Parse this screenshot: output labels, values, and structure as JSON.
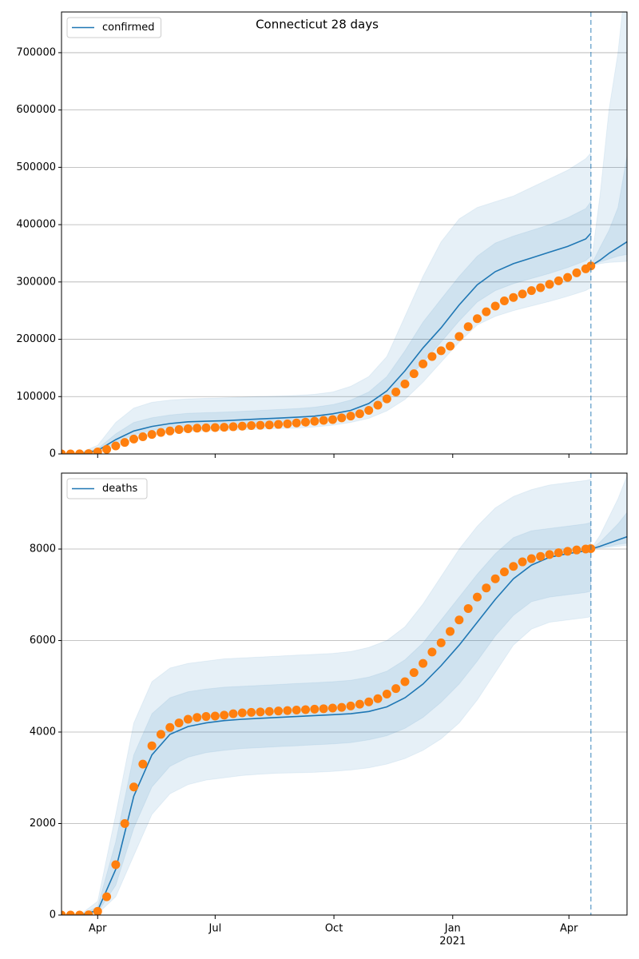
{
  "chart_data": [
    {
      "type": "line",
      "title": "Connecticut 28 days",
      "legend": "upper left",
      "grid": true,
      "xlim": [
        0,
        438
      ],
      "xticks": [
        28,
        119,
        211,
        303,
        393
      ],
      "ylim": [
        0,
        771000
      ],
      "yticks": [
        0,
        100000,
        200000,
        300000,
        400000,
        500000,
        600000,
        700000
      ],
      "vline": 410,
      "series": [
        {
          "name": "confirmed",
          "color": "#1f77b4",
          "x": [
            0,
            14,
            28,
            42,
            56,
            70,
            84,
            98,
            112,
            126,
            140,
            154,
            168,
            182,
            196,
            210,
            224,
            238,
            252,
            266,
            280,
            294,
            308,
            322,
            336,
            350,
            364,
            378,
            392,
            406,
            410
          ],
          "values": [
            0,
            500,
            6000,
            25000,
            40000,
            48000,
            53000,
            56000,
            57000,
            58000,
            59500,
            61000,
            62500,
            64000,
            66000,
            70000,
            76000,
            88000,
            110000,
            145000,
            185000,
            220000,
            260000,
            295000,
            318000,
            332000,
            342000,
            352000,
            362000,
            375000,
            385000
          ],
          "bands": [
            {
              "lower": [
                0,
                0,
                2000,
                12000,
                25000,
                33000,
                37000,
                39000,
                40000,
                41000,
                42000,
                43000,
                44000,
                45000,
                47000,
                50000,
                55000,
                62000,
                75000,
                95000,
                125000,
                160000,
                195000,
                225000,
                240000,
                250000,
                258000,
                266000,
                275000,
                285000,
                290000
              ],
              "upper": [
                0,
                2000,
                15000,
                55000,
                80000,
                90000,
                94000,
                96000,
                97000,
                98000,
                99000,
                100000,
                101000,
                102000,
                104000,
                108000,
                118000,
                135000,
                170000,
                240000,
                310000,
                370000,
                410000,
                430000,
                440000,
                450000,
                465000,
                480000,
                495000,
                515000,
                525000
              ]
            },
            {
              "lower": [
                0,
                300,
                4000,
                19000,
                33000,
                41000,
                46000,
                49000,
                50000,
                51000,
                52000,
                53500,
                55000,
                56500,
                58500,
                62000,
                67000,
                77000,
                95000,
                125000,
                160000,
                195000,
                232000,
                265000,
                285000,
                297000,
                306000,
                315000,
                325000,
                337000,
                345000
              ],
              "upper": [
                0,
                1000,
                9000,
                35000,
                55000,
                63000,
                68000,
                71000,
                72000,
                73000,
                74500,
                76000,
                77500,
                79000,
                81500,
                86000,
                94000,
                108000,
                135000,
                180000,
                230000,
                270000,
                310000,
                345000,
                368000,
                380000,
                390000,
                400000,
                412000,
                428000,
                440000
              ]
            }
          ]
        }
      ],
      "forecast": {
        "color": "#1f77b4",
        "x": [
          410,
          417,
          424,
          431,
          438
        ],
        "values": [
          328000,
          338000,
          350000,
          360000,
          370000
        ],
        "bands": [
          {
            "lower": [
              328000,
              332000,
              334000,
              335000,
              336000
            ],
            "upper": [
              328000,
              450000,
              600000,
              700000,
              850000
            ]
          },
          {
            "lower": [
              328000,
              335000,
              340000,
              345000,
              348000
            ],
            "upper": [
              328000,
              360000,
              390000,
              430000,
              520000
            ]
          }
        ]
      },
      "observed": {
        "color": "#ff7f0e",
        "x": [
          0,
          7,
          14,
          21,
          28,
          35,
          42,
          49,
          56,
          63,
          70,
          77,
          84,
          91,
          98,
          105,
          112,
          119,
          126,
          133,
          140,
          147,
          154,
          161,
          168,
          175,
          182,
          189,
          196,
          203,
          210,
          217,
          224,
          231,
          238,
          245,
          252,
          259,
          266,
          273,
          280,
          287,
          294,
          301,
          308,
          315,
          322,
          329,
          336,
          343,
          350,
          357,
          364,
          371,
          378,
          385,
          392,
          399,
          406,
          410
        ],
        "values": [
          0,
          0,
          100,
          500,
          3500,
          8000,
          14000,
          20000,
          26000,
          30000,
          34000,
          37500,
          40000,
          42500,
          44000,
          45000,
          45500,
          46000,
          46500,
          47500,
          48500,
          49500,
          50000,
          50500,
          51500,
          52500,
          54000,
          55500,
          57000,
          58500,
          60000,
          63000,
          66000,
          70000,
          76000,
          85000,
          96000,
          108000,
          122000,
          140000,
          157000,
          170000,
          180000,
          188000,
          205000,
          222000,
          236000,
          248000,
          258000,
          267000,
          273000,
          279000,
          285000,
          290000,
          296000,
          302000,
          308000,
          316000,
          323000,
          328000
        ]
      }
    },
    {
      "type": "line",
      "legend": "upper left",
      "grid": true,
      "xlim": [
        0,
        438
      ],
      "xticks": [
        {
          "value": 28,
          "label": "Apr"
        },
        {
          "value": 119,
          "label": "Jul"
        },
        {
          "value": 211,
          "label": "Oct"
        },
        {
          "value": 303,
          "label": "Jan",
          "sublabel": "2021"
        },
        {
          "value": 393,
          "label": "Apr"
        }
      ],
      "ylim": [
        0,
        9660
      ],
      "yticks": [
        0,
        2000,
        4000,
        6000,
        8000
      ],
      "vline": 410,
      "series": [
        {
          "name": "deaths",
          "color": "#1f77b4",
          "x": [
            0,
            14,
            28,
            42,
            56,
            70,
            84,
            98,
            112,
            126,
            140,
            154,
            168,
            182,
            196,
            210,
            224,
            238,
            252,
            266,
            280,
            294,
            308,
            322,
            336,
            350,
            364,
            378,
            392,
            406,
            410
          ],
          "values": [
            0,
            0,
            100,
            1000,
            2600,
            3500,
            3950,
            4120,
            4200,
            4250,
            4280,
            4300,
            4320,
            4340,
            4360,
            4380,
            4400,
            4450,
            4550,
            4750,
            5050,
            5450,
            5900,
            6400,
            6900,
            7350,
            7650,
            7820,
            7900,
            7960,
            8000
          ],
          "bands": [
            {
              "lower": [
                0,
                0,
                30,
                400,
                1300,
                2200,
                2650,
                2850,
                2950,
                3000,
                3050,
                3080,
                3100,
                3110,
                3120,
                3140,
                3170,
                3220,
                3300,
                3420,
                3600,
                3850,
                4200,
                4700,
                5300,
                5900,
                6250,
                6400,
                6450,
                6500,
                6520
              ],
              "upper": [
                0,
                0,
                300,
                2200,
                4200,
                5100,
                5400,
                5500,
                5550,
                5600,
                5620,
                5640,
                5660,
                5680,
                5700,
                5720,
                5760,
                5850,
                6000,
                6300,
                6800,
                7400,
                8000,
                8500,
                8900,
                9150,
                9300,
                9400,
                9450,
                9500,
                9520
              ]
            },
            {
              "lower": [
                0,
                0,
                60,
                650,
                1900,
                2800,
                3250,
                3450,
                3550,
                3600,
                3640,
                3660,
                3680,
                3700,
                3720,
                3740,
                3770,
                3830,
                3920,
                4080,
                4320,
                4650,
                5050,
                5550,
                6100,
                6550,
                6850,
                6950,
                7000,
                7050,
                7080
              ],
              "upper": [
                0,
                0,
                180,
                1600,
                3500,
                4400,
                4750,
                4880,
                4940,
                4980,
                5000,
                5020,
                5040,
                5060,
                5080,
                5100,
                5130,
                5200,
                5330,
                5580,
                5950,
                6450,
                6950,
                7450,
                7900,
                8250,
                8400,
                8450,
                8500,
                8550,
                8580
              ]
            }
          ]
        }
      ],
      "forecast": {
        "color": "#1f77b4",
        "x": [
          410,
          417,
          424,
          431,
          438
        ],
        "values": [
          8000,
          8060,
          8130,
          8200,
          8270
        ],
        "bands": [
          {
            "lower": [
              8000,
              8020,
              8040,
              8060,
              8080
            ],
            "upper": [
              8000,
              8300,
              8700,
              9100,
              9600
            ]
          },
          {
            "lower": [
              8000,
              8030,
              8060,
              8100,
              8130
            ],
            "upper": [
              8000,
              8150,
              8350,
              8550,
              8800
            ]
          }
        ]
      },
      "observed": {
        "color": "#ff7f0e",
        "x": [
          0,
          7,
          14,
          21,
          28,
          35,
          42,
          49,
          56,
          63,
          70,
          77,
          84,
          91,
          98,
          105,
          112,
          119,
          126,
          133,
          140,
          147,
          154,
          161,
          168,
          175,
          182,
          189,
          196,
          203,
          210,
          217,
          224,
          231,
          238,
          245,
          252,
          259,
          266,
          273,
          280,
          287,
          294,
          301,
          308,
          315,
          322,
          329,
          336,
          343,
          350,
          357,
          364,
          371,
          378,
          385,
          392,
          399,
          406,
          410
        ],
        "values": [
          0,
          0,
          0,
          5,
          80,
          400,
          1100,
          2000,
          2800,
          3300,
          3700,
          3950,
          4100,
          4200,
          4280,
          4320,
          4340,
          4350,
          4370,
          4400,
          4420,
          4430,
          4440,
          4450,
          4460,
          4470,
          4480,
          4490,
          4500,
          4510,
          4525,
          4540,
          4570,
          4610,
          4660,
          4730,
          4830,
          4950,
          5100,
          5300,
          5500,
          5750,
          5950,
          6200,
          6450,
          6700,
          6950,
          7150,
          7350,
          7500,
          7620,
          7720,
          7790,
          7840,
          7880,
          7920,
          7950,
          7980,
          8000,
          8010
        ]
      }
    }
  ]
}
